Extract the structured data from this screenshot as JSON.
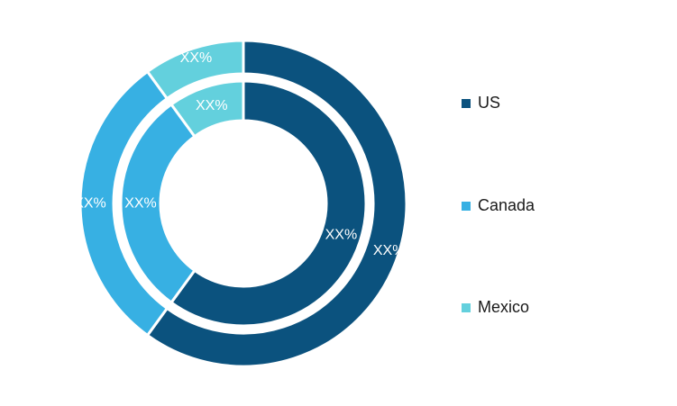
{
  "chart_data": {
    "type": "pie",
    "variant": "nested-donut",
    "categories": [
      "US",
      "Canada",
      "Mexico"
    ],
    "colors": [
      "#0b527e",
      "#37b0e3",
      "#63d0dd"
    ],
    "rings": [
      {
        "values": [
          60,
          30,
          10
        ],
        "labels": [
          "XX%",
          "XX%",
          "XX%"
        ]
      },
      {
        "values": [
          60,
          30,
          10
        ],
        "labels": [
          "XX%",
          "XX%",
          "XX%"
        ]
      }
    ],
    "legend": {
      "position": "right",
      "items": [
        {
          "label": "US",
          "color": "#0b527e"
        },
        {
          "label": "Canada",
          "color": "#37b0e3"
        },
        {
          "label": "Mexico",
          "color": "#63d0dd"
        }
      ]
    }
  }
}
